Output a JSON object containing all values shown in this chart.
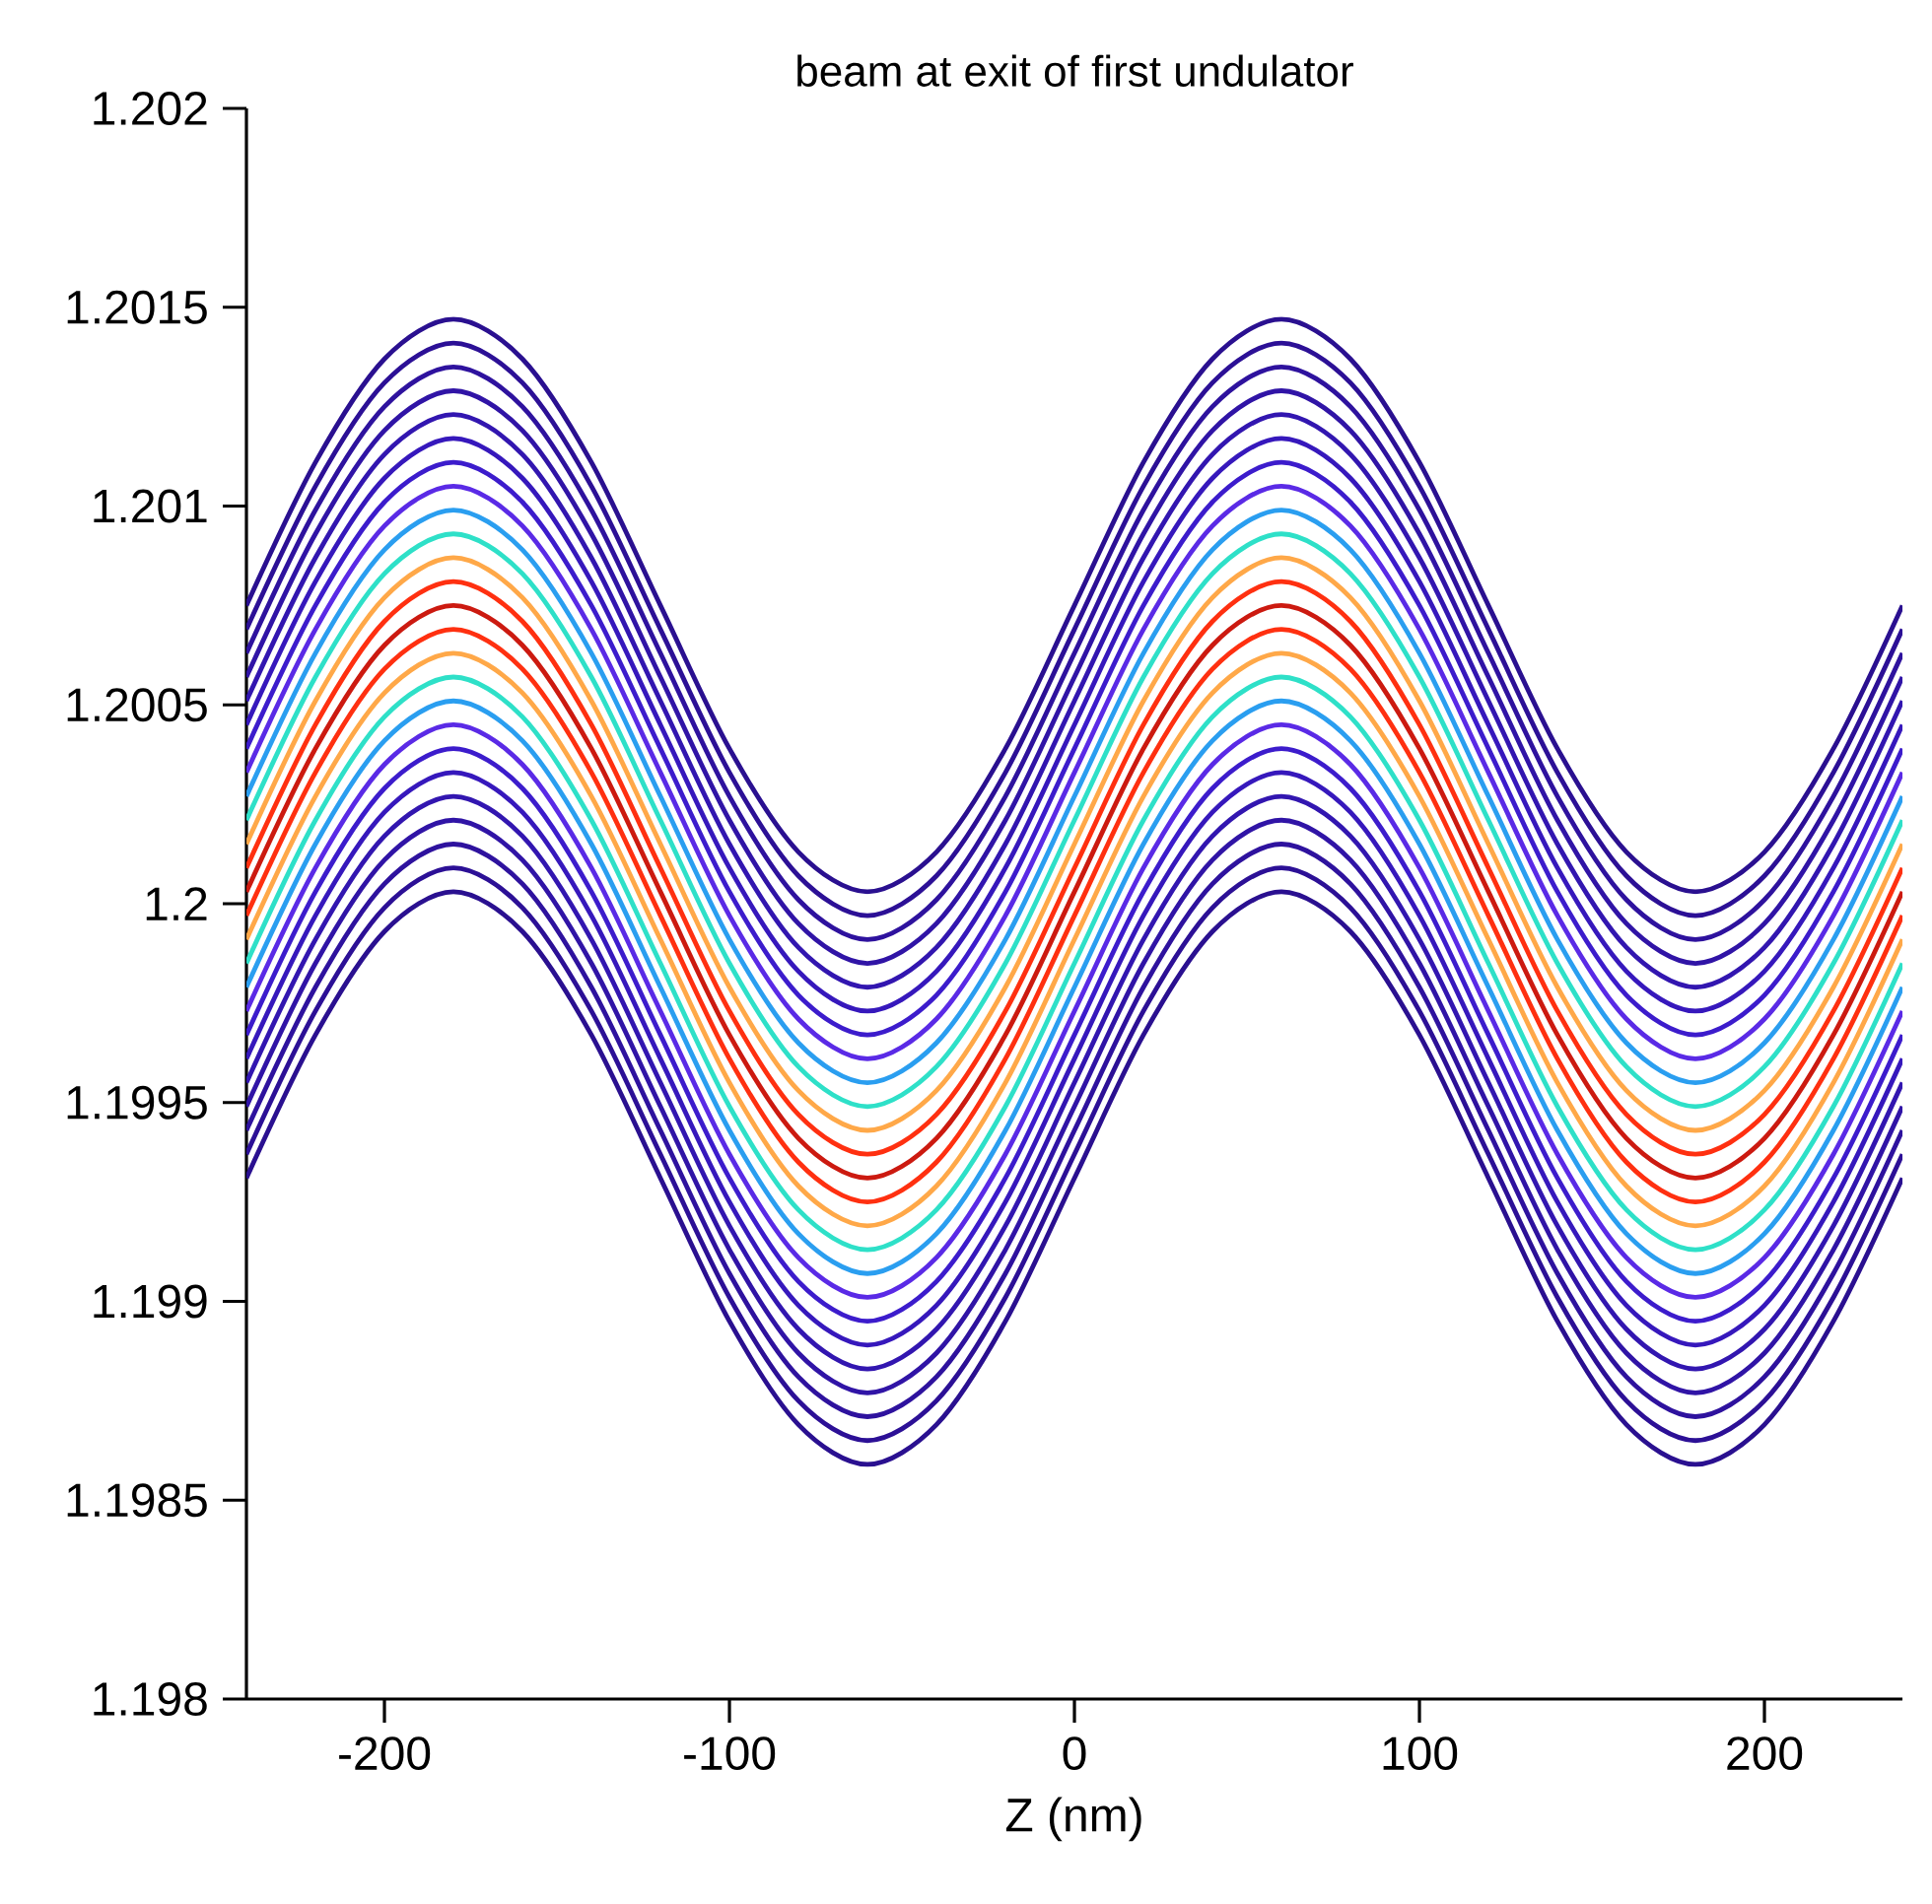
{
  "chart_data": {
    "type": "line",
    "title": "beam at exit of first undulator",
    "xlabel": "Z (nm)",
    "x": [
      -240,
      -220,
      -200,
      -180,
      -160,
      -140,
      -120,
      -100,
      -80,
      -60,
      -40,
      -20,
      0,
      20,
      40,
      60,
      80,
      100,
      120,
      140,
      160,
      180,
      200,
      220,
      240
    ],
    "xlim": [
      -240,
      240
    ],
    "xticks": [
      -200,
      -100,
      0,
      100,
      200
    ],
    "ylim": [
      1.198,
      1.202
    ],
    "yticks": [
      1.198,
      1.1985,
      1.199,
      1.1995,
      1.2,
      1.2005,
      1.201,
      1.2015,
      1.202
    ],
    "grid": false,
    "marker": "none",
    "line_style": "solid",
    "series": [
      {
        "color": "#2a1090",
        "values": [
          1.20075,
          1.20111,
          1.20137,
          1.20147,
          1.20137,
          1.20111,
          1.20075,
          1.20039,
          1.20013,
          1.20003,
          1.20013,
          1.20039,
          1.20075,
          1.20111,
          1.20137,
          1.20147,
          1.20137,
          1.20111,
          1.20075,
          1.20039,
          1.20013,
          1.20003,
          1.20013,
          1.20039,
          1.20075
        ]
      },
      {
        "color": "#2c1096",
        "values": [
          1.20069,
          1.20105,
          1.20131,
          1.20141,
          1.20131,
          1.20105,
          1.20069,
          1.20033,
          1.20007,
          1.19997,
          1.20007,
          1.20033,
          1.20069,
          1.20105,
          1.20131,
          1.20141,
          1.20131,
          1.20105,
          1.20069,
          1.20033,
          1.20007,
          1.19997,
          1.20007,
          1.20033,
          1.20069
        ]
      },
      {
        "color": "#2e129e",
        "values": [
          1.20063,
          1.20099,
          1.20125,
          1.20135,
          1.20125,
          1.20099,
          1.20063,
          1.20027,
          1.20001,
          1.19991,
          1.20001,
          1.20027,
          1.20063,
          1.20099,
          1.20125,
          1.20135,
          1.20125,
          1.20099,
          1.20063,
          1.20027,
          1.20001,
          1.19991,
          1.20001,
          1.20027,
          1.20063
        ]
      },
      {
        "color": "#3014a6",
        "values": [
          1.20057,
          1.20093,
          1.20119,
          1.20129,
          1.20119,
          1.20093,
          1.20057,
          1.20021,
          1.19995,
          1.19985,
          1.19995,
          1.20021,
          1.20057,
          1.20093,
          1.20119,
          1.20129,
          1.20119,
          1.20093,
          1.20057,
          1.20021,
          1.19995,
          1.19985,
          1.19995,
          1.20021,
          1.20057
        ]
      },
      {
        "color": "#3216b0",
        "values": [
          1.20051,
          1.20087,
          1.20113,
          1.20123,
          1.20113,
          1.20087,
          1.20051,
          1.20015,
          1.19989,
          1.19979,
          1.19989,
          1.20015,
          1.20051,
          1.20087,
          1.20113,
          1.20123,
          1.20113,
          1.20087,
          1.20051,
          1.20015,
          1.19989,
          1.19979,
          1.19989,
          1.20015,
          1.20051
        ]
      },
      {
        "color": "#3618bc",
        "values": [
          1.20045,
          1.20081,
          1.20107,
          1.20117,
          1.20107,
          1.20081,
          1.20045,
          1.20009,
          1.19983,
          1.19973,
          1.19983,
          1.20009,
          1.20045,
          1.20081,
          1.20107,
          1.20117,
          1.20107,
          1.20081,
          1.20045,
          1.20009,
          1.19983,
          1.19973,
          1.19983,
          1.20009,
          1.20045
        ]
      },
      {
        "color": "#3c1ccc",
        "values": [
          1.20039,
          1.20075,
          1.20101,
          1.20111,
          1.20101,
          1.20075,
          1.20039,
          1.20003,
          1.19977,
          1.19967,
          1.19977,
          1.20003,
          1.20039,
          1.20075,
          1.20101,
          1.20111,
          1.20101,
          1.20075,
          1.20039,
          1.20003,
          1.19977,
          1.19967,
          1.19977,
          1.20003,
          1.20039
        ]
      },
      {
        "color": "#5a2ae6",
        "values": [
          1.20033,
          1.20069,
          1.20095,
          1.20105,
          1.20095,
          1.20069,
          1.20033,
          1.19997,
          1.19971,
          1.19961,
          1.19971,
          1.19997,
          1.20033,
          1.20069,
          1.20095,
          1.20105,
          1.20095,
          1.20069,
          1.20033,
          1.19997,
          1.19971,
          1.19961,
          1.19971,
          1.19997,
          1.20033
        ]
      },
      {
        "color": "#2a9ef0",
        "values": [
          1.20027,
          1.20063,
          1.20089,
          1.20099,
          1.20089,
          1.20063,
          1.20027,
          1.19991,
          1.19965,
          1.19955,
          1.19965,
          1.19991,
          1.20027,
          1.20063,
          1.20089,
          1.20099,
          1.20089,
          1.20063,
          1.20027,
          1.19991,
          1.19965,
          1.19955,
          1.19965,
          1.19991,
          1.20027
        ]
      },
      {
        "color": "#2ee0c8",
        "values": [
          1.20021,
          1.20057,
          1.20083,
          1.20093,
          1.20083,
          1.20057,
          1.20021,
          1.19985,
          1.19959,
          1.19949,
          1.19959,
          1.19985,
          1.20021,
          1.20057,
          1.20083,
          1.20093,
          1.20083,
          1.20057,
          1.20021,
          1.19985,
          1.19959,
          1.19949,
          1.19959,
          1.19985,
          1.20021
        ]
      },
      {
        "color": "#ffa848",
        "values": [
          1.20015,
          1.20051,
          1.20077,
          1.20087,
          1.20077,
          1.20051,
          1.20015,
          1.19979,
          1.19953,
          1.19943,
          1.19953,
          1.19979,
          1.20015,
          1.20051,
          1.20077,
          1.20087,
          1.20077,
          1.20051,
          1.20015,
          1.19979,
          1.19953,
          1.19943,
          1.19953,
          1.19979,
          1.20015
        ]
      },
      {
        "color": "#ff3010",
        "values": [
          1.20009,
          1.20045,
          1.20071,
          1.20081,
          1.20071,
          1.20045,
          1.20009,
          1.19973,
          1.19947,
          1.19937,
          1.19947,
          1.19973,
          1.20009,
          1.20045,
          1.20071,
          1.20081,
          1.20071,
          1.20045,
          1.20009,
          1.19973,
          1.19947,
          1.19937,
          1.19947,
          1.19973,
          1.20009
        ]
      },
      {
        "color": "#cc1a10",
        "values": [
          1.20003,
          1.20039,
          1.20065,
          1.20075,
          1.20065,
          1.20039,
          1.20003,
          1.19967,
          1.19941,
          1.19931,
          1.19941,
          1.19967,
          1.20003,
          1.20039,
          1.20065,
          1.20075,
          1.20065,
          1.20039,
          1.20003,
          1.19967,
          1.19941,
          1.19931,
          1.19941,
          1.19967,
          1.20003
        ]
      },
      {
        "color": "#ff3010",
        "values": [
          1.19997,
          1.20033,
          1.20059,
          1.20069,
          1.20059,
          1.20033,
          1.19997,
          1.19961,
          1.19935,
          1.19925,
          1.19935,
          1.19961,
          1.19997,
          1.20033,
          1.20059,
          1.20069,
          1.20059,
          1.20033,
          1.19997,
          1.19961,
          1.19935,
          1.19925,
          1.19935,
          1.19961,
          1.19997
        ]
      },
      {
        "color": "#ffa848",
        "values": [
          1.19991,
          1.20027,
          1.20053,
          1.20063,
          1.20053,
          1.20027,
          1.19991,
          1.19955,
          1.19929,
          1.19919,
          1.19929,
          1.19955,
          1.19991,
          1.20027,
          1.20053,
          1.20063,
          1.20053,
          1.20027,
          1.19991,
          1.19955,
          1.19929,
          1.19919,
          1.19929,
          1.19955,
          1.19991
        ]
      },
      {
        "color": "#2ee0c8",
        "values": [
          1.19985,
          1.20021,
          1.20047,
          1.20057,
          1.20047,
          1.20021,
          1.19985,
          1.19949,
          1.19923,
          1.19913,
          1.19923,
          1.19949,
          1.19985,
          1.20021,
          1.20047,
          1.20057,
          1.20047,
          1.20021,
          1.19985,
          1.19949,
          1.19923,
          1.19913,
          1.19923,
          1.19949,
          1.19985
        ]
      },
      {
        "color": "#2a9ef0",
        "values": [
          1.19979,
          1.20015,
          1.20041,
          1.20051,
          1.20041,
          1.20015,
          1.19979,
          1.19943,
          1.19917,
          1.19907,
          1.19917,
          1.19943,
          1.19979,
          1.20015,
          1.20041,
          1.20051,
          1.20041,
          1.20015,
          1.19979,
          1.19943,
          1.19917,
          1.19907,
          1.19917,
          1.19943,
          1.19979
        ]
      },
      {
        "color": "#5a2ae6",
        "values": [
          1.19973,
          1.20009,
          1.20035,
          1.20045,
          1.20035,
          1.20009,
          1.19973,
          1.19937,
          1.19911,
          1.19901,
          1.19911,
          1.19937,
          1.19973,
          1.20009,
          1.20035,
          1.20045,
          1.20035,
          1.20009,
          1.19973,
          1.19937,
          1.19911,
          1.19901,
          1.19911,
          1.19937,
          1.19973
        ]
      },
      {
        "color": "#3c1ccc",
        "values": [
          1.19967,
          1.20003,
          1.20029,
          1.20039,
          1.20029,
          1.20003,
          1.19967,
          1.19931,
          1.19905,
          1.19895,
          1.19905,
          1.19931,
          1.19967,
          1.20003,
          1.20029,
          1.20039,
          1.20029,
          1.20003,
          1.19967,
          1.19931,
          1.19905,
          1.19895,
          1.19905,
          1.19931,
          1.19967
        ]
      },
      {
        "color": "#3618bc",
        "values": [
          1.19961,
          1.19997,
          1.20023,
          1.20033,
          1.20023,
          1.19997,
          1.19961,
          1.19925,
          1.19899,
          1.19889,
          1.19899,
          1.19925,
          1.19961,
          1.19997,
          1.20023,
          1.20033,
          1.20023,
          1.19997,
          1.19961,
          1.19925,
          1.19899,
          1.19889,
          1.19899,
          1.19925,
          1.19961
        ]
      },
      {
        "color": "#3216b0",
        "values": [
          1.19955,
          1.19991,
          1.20017,
          1.20027,
          1.20017,
          1.19991,
          1.19955,
          1.19919,
          1.19893,
          1.19883,
          1.19893,
          1.19919,
          1.19955,
          1.19991,
          1.20017,
          1.20027,
          1.20017,
          1.19991,
          1.19955,
          1.19919,
          1.19893,
          1.19883,
          1.19893,
          1.19919,
          1.19955
        ]
      },
      {
        "color": "#3014a6",
        "values": [
          1.19949,
          1.19985,
          1.20011,
          1.20021,
          1.20011,
          1.19985,
          1.19949,
          1.19913,
          1.19887,
          1.19877,
          1.19887,
          1.19913,
          1.19949,
          1.19985,
          1.20011,
          1.20021,
          1.20011,
          1.19985,
          1.19949,
          1.19913,
          1.19887,
          1.19877,
          1.19887,
          1.19913,
          1.19949
        ]
      },
      {
        "color": "#2e129e",
        "values": [
          1.19943,
          1.19979,
          1.20005,
          1.20015,
          1.20005,
          1.19979,
          1.19943,
          1.19907,
          1.19881,
          1.19871,
          1.19881,
          1.19907,
          1.19943,
          1.19979,
          1.20005,
          1.20015,
          1.20005,
          1.19979,
          1.19943,
          1.19907,
          1.19881,
          1.19871,
          1.19881,
          1.19907,
          1.19943
        ]
      },
      {
        "color": "#2c1096",
        "values": [
          1.19937,
          1.19973,
          1.19999,
          1.20009,
          1.19999,
          1.19973,
          1.19937,
          1.19901,
          1.19875,
          1.19865,
          1.19875,
          1.19901,
          1.19937,
          1.19973,
          1.19999,
          1.20009,
          1.19999,
          1.19973,
          1.19937,
          1.19901,
          1.19875,
          1.19865,
          1.19875,
          1.19901,
          1.19937
        ]
      },
      {
        "color": "#2a1090",
        "values": [
          1.19931,
          1.19967,
          1.19993,
          1.20003,
          1.19993,
          1.19967,
          1.19931,
          1.19895,
          1.19869,
          1.19859,
          1.19869,
          1.19895,
          1.19931,
          1.19967,
          1.19993,
          1.20003,
          1.19993,
          1.19967,
          1.19931,
          1.19895,
          1.19869,
          1.19859,
          1.19869,
          1.19895,
          1.19931
        ]
      }
    ]
  }
}
